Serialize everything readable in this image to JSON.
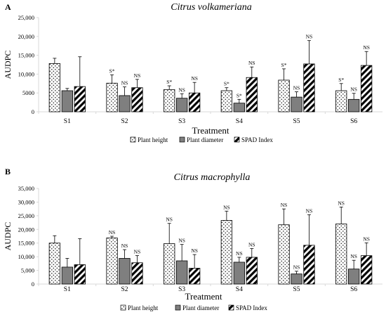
{
  "patterns": {
    "Plant height": "dots",
    "Plant diameter": "solid",
    "SPAD Index": "stripes"
  },
  "colors": {
    "bar_fill": "#7f7f7f",
    "axis": "#d9d9d9",
    "text": "#000000"
  },
  "chart_data": [
    {
      "panel_label": "A",
      "type": "bar",
      "title": "Citrus volkameriana",
      "xlabel": "Treatment",
      "ylabel": "AUDPC",
      "ylim": [
        0,
        25000
      ],
      "yticks": [
        "0",
        "5000",
        "10,000",
        "15,000",
        "20,000",
        "25,000"
      ],
      "ytick_values": [
        0,
        5000,
        10000,
        15000,
        20000,
        25000
      ],
      "categories": [
        "S1",
        "S2",
        "S3",
        "S4",
        "S5",
        "S6"
      ],
      "series": [
        {
          "name": "Plant height",
          "values": [
            12800,
            7600,
            5900,
            5600,
            8400,
            5600
          ],
          "errors": [
            1400,
            2200,
            1000,
            800,
            3000,
            1900
          ],
          "labels": [
            "",
            "S*",
            "S*",
            "S*",
            "S*",
            "S*"
          ]
        },
        {
          "name": "Plant diameter",
          "values": [
            5600,
            4300,
            3600,
            2300,
            3900,
            3300
          ],
          "errors": [
            600,
            2300,
            1200,
            1000,
            1400,
            1600
          ],
          "labels": [
            "",
            "NS",
            "NS",
            "S*",
            "NS",
            "NS"
          ]
        },
        {
          "name": "SPAD Index",
          "values": [
            6700,
            6400,
            5000,
            9100,
            12700,
            12300
          ],
          "errors": [
            7900,
            2200,
            2800,
            2800,
            6200,
            3700
          ],
          "labels": [
            "",
            "NS",
            "NS",
            "NS",
            "NS",
            "NS"
          ]
        }
      ],
      "legend": [
        "Plant height",
        "Plant diameter",
        "SPAD Index"
      ],
      "legend_position": "bottom",
      "grid": false
    },
    {
      "panel_label": "B",
      "type": "bar",
      "title": "Citrus macrophylla",
      "xlabel": "Treatment",
      "ylabel": "AUDPC",
      "ylim": [
        0,
        35000
      ],
      "yticks": [
        "0",
        "5,000",
        "10,000",
        "15,000",
        "20,000",
        "25,000",
        "30,000",
        "35,000"
      ],
      "ytick_values": [
        0,
        5000,
        10000,
        15000,
        20000,
        25000,
        30000,
        35000
      ],
      "categories": [
        "S1",
        "S2",
        "S3",
        "S4",
        "S5",
        "S6"
      ],
      "series": [
        {
          "name": "Plant height",
          "values": [
            15000,
            16900,
            14800,
            23300,
            21700,
            22000
          ],
          "errors": [
            2700,
            600,
            7400,
            3400,
            5800,
            6200
          ],
          "labels": [
            "",
            "NS",
            "NS",
            "NS",
            "NS",
            "NS"
          ]
        },
        {
          "name": "Plant diameter",
          "values": [
            6200,
            9400,
            8500,
            8000,
            3700,
            5500
          ],
          "errors": [
            3200,
            3200,
            6000,
            1800,
            1000,
            3200
          ],
          "labels": [
            "",
            "NS",
            "NS",
            "NS",
            "NS",
            "NS"
          ]
        },
        {
          "name": "SPAD Index",
          "values": [
            7100,
            7800,
            5800,
            9800,
            14200,
            10400
          ],
          "errors": [
            9500,
            2600,
            5000,
            3200,
            11200,
            4700
          ],
          "labels": [
            "",
            "NS",
            "NS",
            "NS",
            "NS",
            "NS"
          ]
        }
      ],
      "legend": [
        "Plant height",
        "Plant diameter",
        "SPAD Index"
      ],
      "legend_position": "bottom",
      "grid": false
    }
  ]
}
